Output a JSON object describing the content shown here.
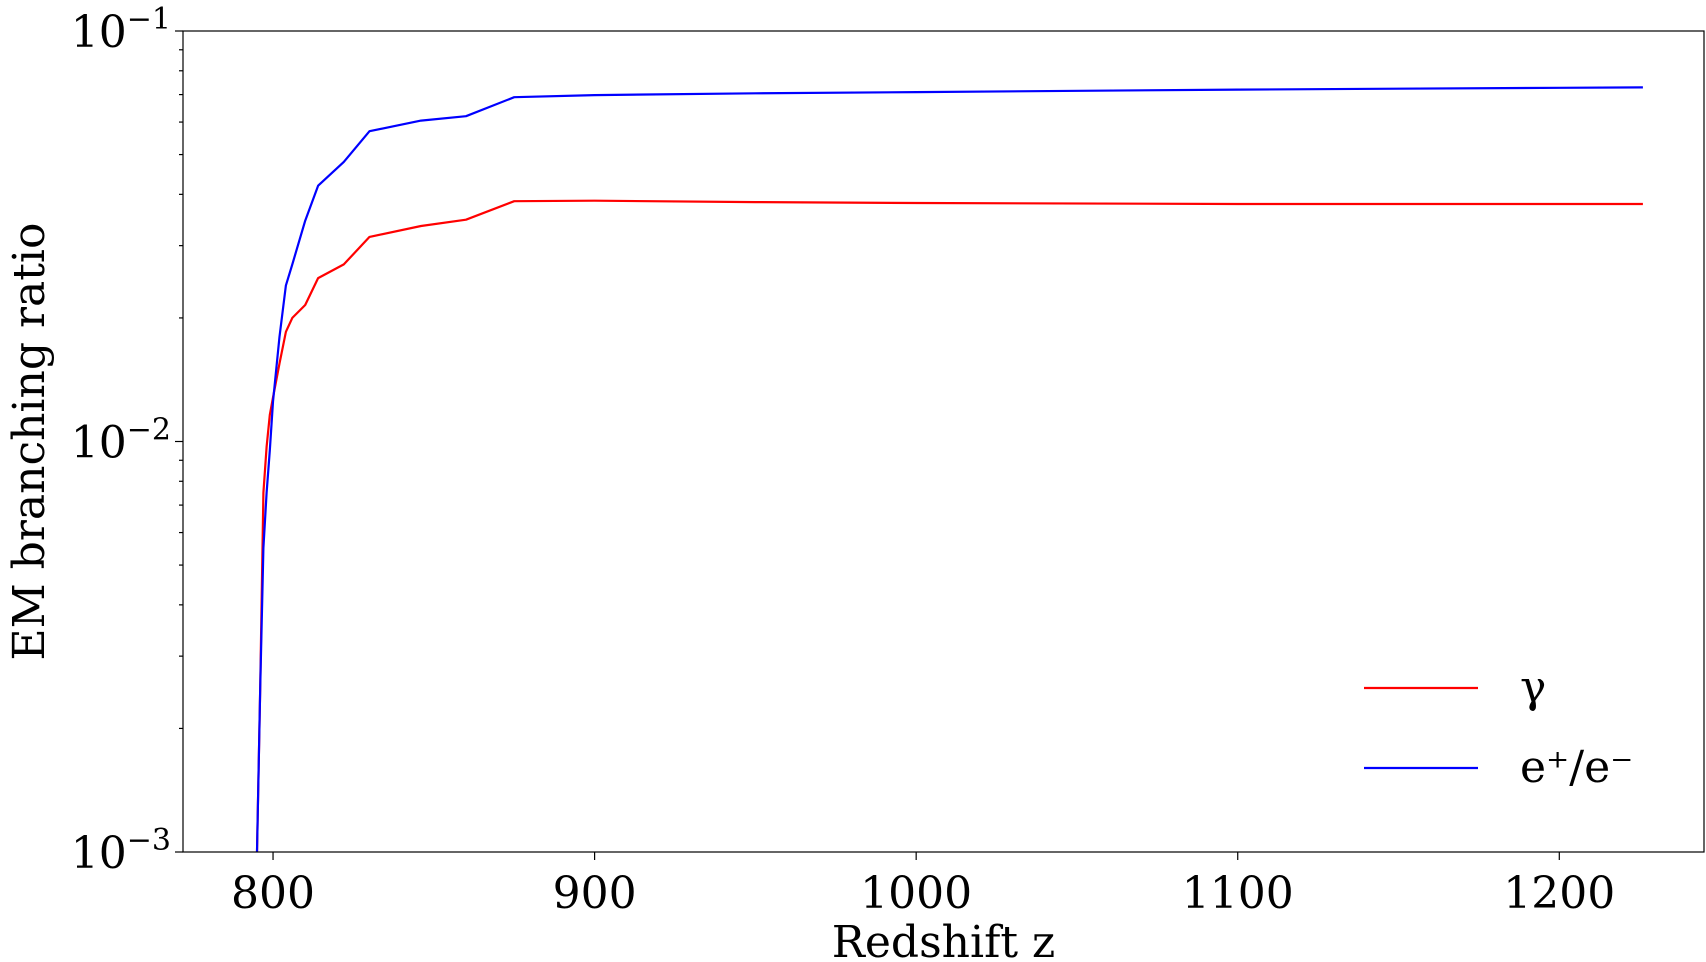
{
  "chart_data": {
    "type": "line",
    "title": "",
    "xlabel": "Redshift z",
    "ylabel": "EM branching ratio",
    "xlim": [
      772,
      1245
    ],
    "ylim": [
      0.001,
      0.1
    ],
    "yscale": "log",
    "grid": false,
    "legend_position": "lower-right",
    "x_ticks": [
      800,
      900,
      1000,
      1100,
      1200
    ],
    "x_tick_labels": [
      "800",
      "900",
      "1000",
      "1100",
      "1200"
    ],
    "y_ticks": [
      0.001,
      0.01,
      0.1
    ],
    "y_tick_labels": [
      {
        "base": "10",
        "exp": "−3"
      },
      {
        "base": "10",
        "exp": "−2"
      },
      {
        "base": "10",
        "exp": "−1"
      }
    ],
    "series": [
      {
        "name": "γ",
        "color": "#ff0000",
        "x": [
          795,
          796,
          797,
          798,
          799,
          800,
          802,
          804,
          806,
          810,
          814,
          822,
          830,
          846,
          860,
          875,
          900,
          950,
          1000,
          1100,
          1200,
          1226
        ],
        "y": [
          0.001,
          0.0025,
          0.0075,
          0.0097,
          0.0116,
          0.0128,
          0.0155,
          0.0185,
          0.02,
          0.0215,
          0.025,
          0.027,
          0.0315,
          0.0335,
          0.0347,
          0.0385,
          0.0386,
          0.0383,
          0.0381,
          0.0379,
          0.0379,
          0.0379
        ]
      },
      {
        "name": "e⁺/e⁻",
        "color": "#0000ff",
        "x": [
          795,
          796,
          797,
          798,
          799,
          800,
          802,
          804,
          806,
          810,
          814,
          822,
          830,
          846,
          860,
          875,
          900,
          950,
          1000,
          1100,
          1200,
          1226
        ],
        "y": [
          0.001,
          0.0025,
          0.0055,
          0.0075,
          0.0095,
          0.0125,
          0.018,
          0.024,
          0.027,
          0.0345,
          0.042,
          0.048,
          0.057,
          0.0605,
          0.062,
          0.069,
          0.0698,
          0.0705,
          0.071,
          0.072,
          0.0727,
          0.0729
        ]
      }
    ]
  }
}
